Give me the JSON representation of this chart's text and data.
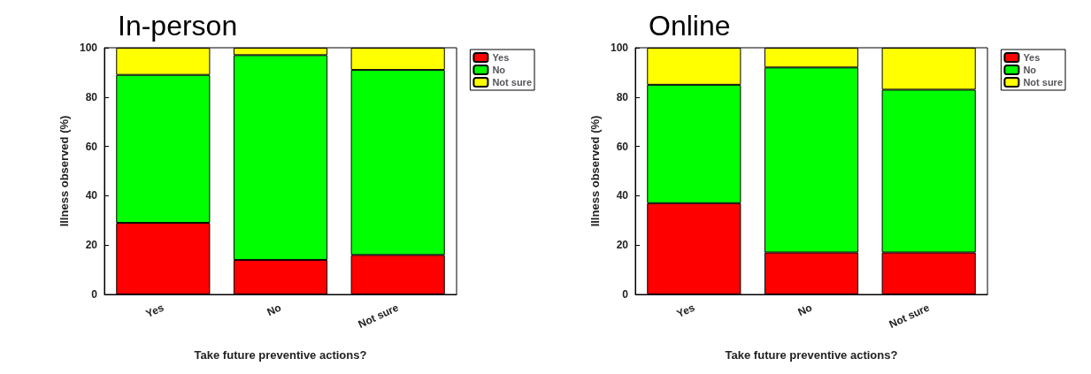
{
  "chart_data": [
    {
      "type": "bar",
      "title": "In-person",
      "xlabel": "Take future preventive actions?",
      "ylabel": "Illness observed (%)",
      "categories": [
        "Yes",
        "No",
        "Not sure"
      ],
      "stacked": true,
      "legend": "top right",
      "grid": false,
      "ylim": [
        0,
        100
      ],
      "yticks": [
        0,
        20,
        40,
        60,
        80,
        100
      ],
      "series": [
        {
          "name": "Yes",
          "color": "#ff0000",
          "values": [
            29,
            14,
            16
          ]
        },
        {
          "name": "No",
          "color": "#00ff00",
          "values": [
            60,
            83,
            75
          ]
        },
        {
          "name": "Not sure",
          "color": "#ffff00",
          "values": [
            11,
            3,
            9
          ]
        }
      ]
    },
    {
      "type": "bar",
      "title": "Online",
      "xlabel": "Take future preventive actions?",
      "ylabel": "Illness observed (%)",
      "categories": [
        "Yes",
        "No",
        "Not sure"
      ],
      "stacked": true,
      "legend": "top right",
      "grid": false,
      "ylim": [
        0,
        100
      ],
      "yticks": [
        0,
        20,
        40,
        60,
        80,
        100
      ],
      "series": [
        {
          "name": "Yes",
          "color": "#ff0000",
          "values": [
            37,
            17,
            17
          ]
        },
        {
          "name": "No",
          "color": "#00ff00",
          "values": [
            48,
            75,
            66
          ]
        },
        {
          "name": "Not sure",
          "color": "#ffff00",
          "values": [
            15,
            8,
            17
          ]
        }
      ]
    }
  ]
}
